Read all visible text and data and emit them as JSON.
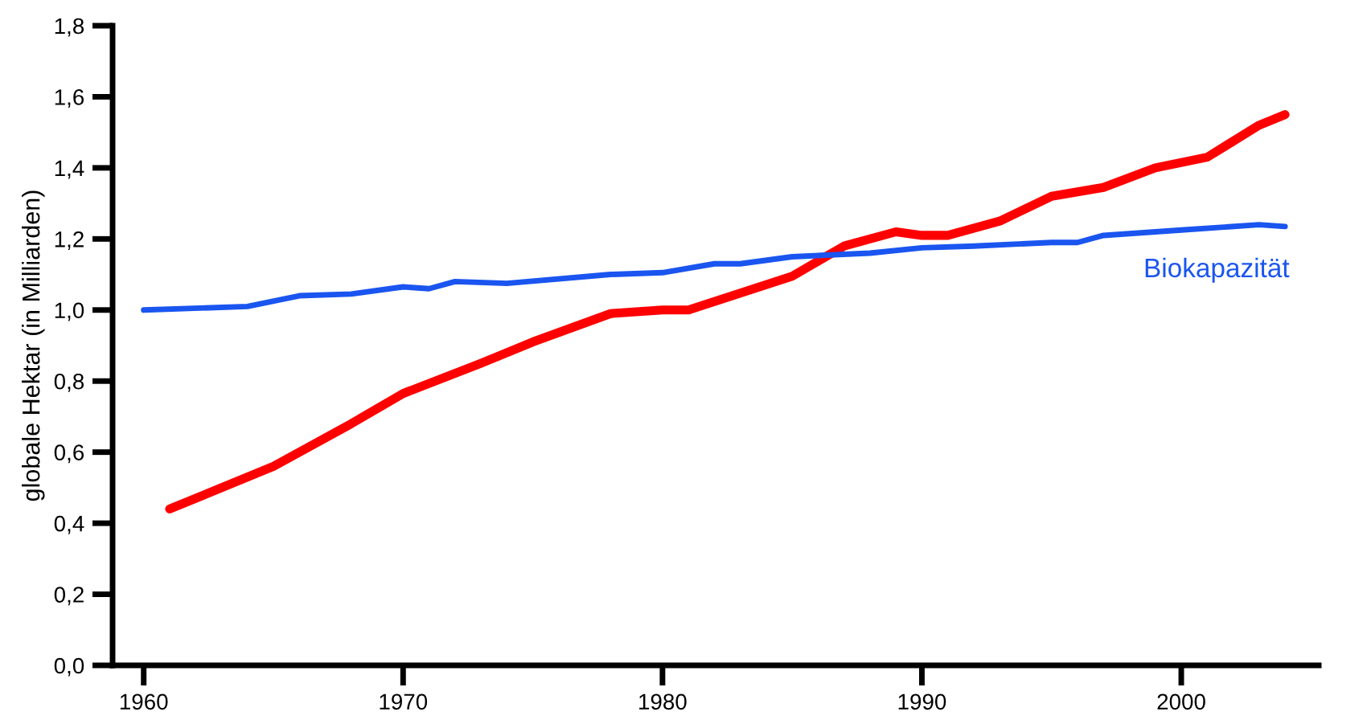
{
  "chart_data": {
    "type": "line",
    "ylabel": "globale Hektar (in Milliarden)",
    "xlim": [
      1958.8,
      2005.3
    ],
    "xticks": [
      1960,
      1970,
      1980,
      1990,
      2000
    ],
    "ylim": [
      0,
      1.8
    ],
    "yticks": [
      {
        "value": 0,
        "label": "0,0"
      },
      {
        "value": 0.2,
        "label": "0,2"
      },
      {
        "value": 0.4,
        "label": "0,4"
      },
      {
        "value": 0.6,
        "label": "0,6"
      },
      {
        "value": 0.8,
        "label": "0,8"
      },
      {
        "value": 1.0,
        "label": "1,0"
      },
      {
        "value": 1.2,
        "label": "1,2"
      },
      {
        "value": 1.4,
        "label": "1,4"
      },
      {
        "value": 1.6,
        "label": "1,6"
      },
      {
        "value": 1.8,
        "label": "1,8"
      }
    ],
    "grid": false,
    "legend": false,
    "marker": "none",
    "line_style": "solid",
    "series": [
      {
        "color": "#ff0000",
        "x": [
          1961,
          1965,
          1968,
          1970,
          1973,
          1975,
          1978,
          1980,
          1981,
          1985,
          1987,
          1989,
          1990,
          1991,
          1993,
          1995,
          1997,
          1999,
          2001,
          2003,
          2004
        ],
        "values": [
          0.44,
          0.56,
          0.68,
          0.765,
          0.85,
          0.91,
          0.99,
          1.0,
          1.0,
          1.095,
          1.18,
          1.22,
          1.21,
          1.21,
          1.25,
          1.32,
          1.345,
          1.4,
          1.43,
          1.52,
          1.55
        ]
      },
      {
        "name": "Biokapazität",
        "color": "#1a55f0",
        "x": [
          1960,
          1964,
          1966,
          1968,
          1970,
          1971,
          1972,
          1974,
          1978,
          1980,
          1982,
          1983,
          1985,
          1988,
          1990,
          1992,
          1995,
          1996,
          1997,
          2000,
          2003,
          2004
        ],
        "values": [
          1.0,
          1.01,
          1.04,
          1.045,
          1.065,
          1.06,
          1.08,
          1.075,
          1.1,
          1.105,
          1.13,
          1.13,
          1.15,
          1.16,
          1.175,
          1.18,
          1.19,
          1.19,
          1.21,
          1.225,
          1.24,
          1.235
        ]
      }
    ]
  }
}
